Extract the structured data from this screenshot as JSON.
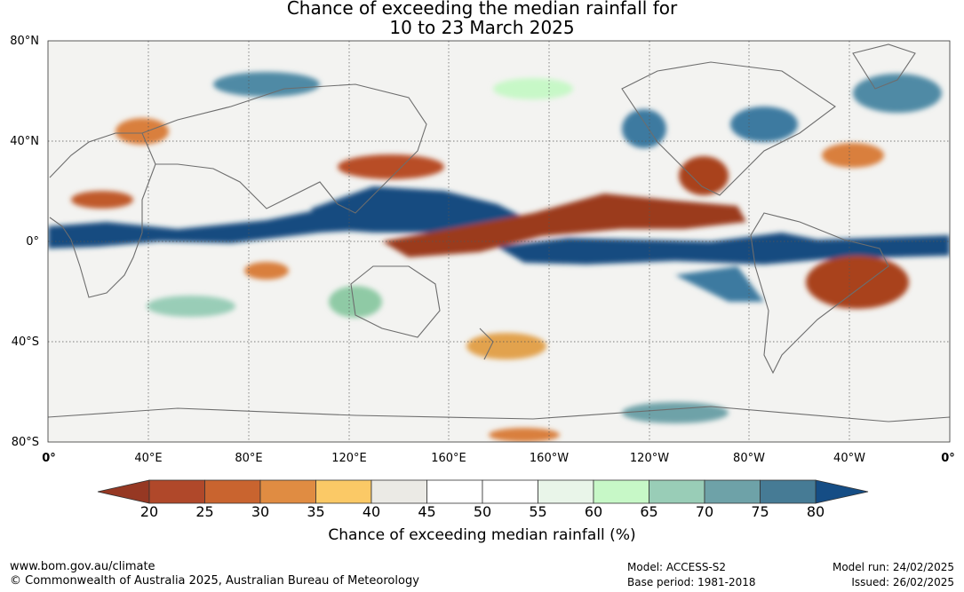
{
  "title": {
    "line1": "Chance of exceeding the median rainfall for",
    "line2": "10 to 23 March 2025"
  },
  "map": {
    "projection": "equirectangular",
    "lat_labels": [
      "80°N",
      "40°N",
      "0°",
      "40°S",
      "80°S"
    ],
    "lon_labels": [
      "0°",
      "40°E",
      "80°E",
      "120°E",
      "160°E",
      "160°W",
      "120°W",
      "80°W",
      "40°W",
      "0°"
    ],
    "gridlines": true,
    "colors": {
      "dry_strong": "#9b3a1e",
      "dry": "#d97f3c",
      "neutral": "#e8e7e3",
      "wet": "#8fcaa5",
      "wet_strong": "#134b80"
    }
  },
  "colorbar": {
    "ticks": [
      "20",
      "25",
      "30",
      "35",
      "40",
      "45",
      "50",
      "55",
      "60",
      "65",
      "70",
      "75",
      "80"
    ],
    "colors": [
      "#b0482a",
      "#c9642f",
      "#e08c42",
      "#fbc966",
      "#ebeae5",
      "#ffffff",
      "#ffffff",
      "#e9f5e9",
      "#c7f8c7",
      "#99cdb7",
      "#6ea2a8",
      "#467b95"
    ],
    "low_extend_color": "#963823",
    "high_extend_color": "#154d85",
    "label": "Chance of exceeding median rainfall (%)"
  },
  "footer": {
    "url": "www.bom.gov.au/climate",
    "copyright": "© Commonwealth of Australia 2025, Australian Bureau of Meteorology",
    "model": "Model: ACCESS-S2",
    "base_period": "Base period: 1981-2018",
    "model_run": "Model run: 24/02/2025",
    "issued": "Issued: 26/02/2025"
  }
}
